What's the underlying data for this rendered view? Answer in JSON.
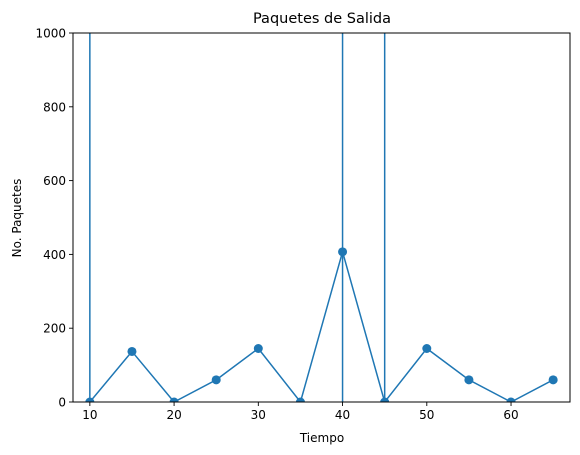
{
  "chart_data": {
    "type": "line",
    "title": "Paquetes de Salida",
    "xlabel": "Tiempo",
    "ylabel": "No. Paquetes",
    "xlim": [
      8,
      67
    ],
    "ylim": [
      0,
      1000
    ],
    "x_ticks": [
      10,
      20,
      30,
      40,
      50,
      60
    ],
    "y_ticks": [
      0,
      200,
      400,
      600,
      800,
      1000
    ],
    "grid": false,
    "color": "#1f77b4",
    "series": [
      {
        "x": [
          10,
          15,
          20,
          25,
          30,
          35,
          40,
          45,
          50,
          55,
          60,
          65
        ],
        "y": [
          0,
          137,
          0,
          60,
          145,
          0,
          407,
          0,
          145,
          60,
          0,
          60
        ]
      }
    ],
    "vertical_lines": [
      10,
      40,
      45
    ]
  }
}
